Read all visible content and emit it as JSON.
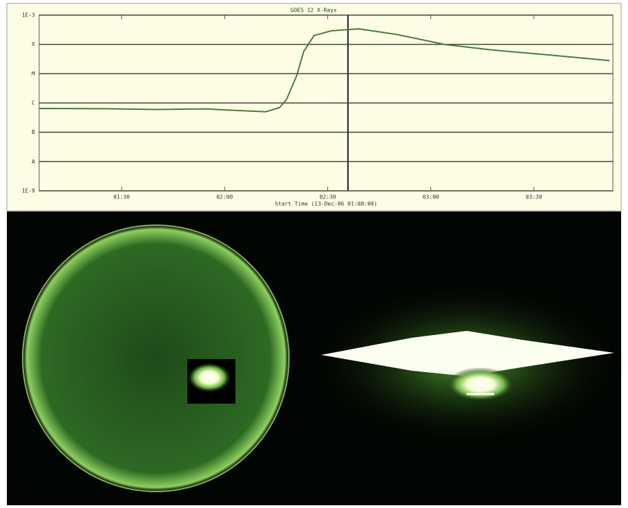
{
  "chart_data": {
    "type": "line",
    "title": "GOES 12 X-Rays",
    "xlabel": "Start Time (13-Dec-06 01:08:00)",
    "log_scale": true,
    "grid": true,
    "x": [
      "01:06",
      "01:24",
      "01:40",
      "01:55",
      "02:00",
      "02:12",
      "02:16",
      "02:18",
      "02:21",
      "02:23",
      "02:26",
      "02:31",
      "02:39",
      "02:50",
      "03:04",
      "03:18",
      "03:34",
      "03:52"
    ],
    "series": [
      {
        "color": "#4a7a3a",
        "values": [
          6.5e-07,
          6.4e-07,
          6e-07,
          6.3e-07,
          5.8e-07,
          5e-07,
          7e-07,
          1.3e-06,
          8.7e-06,
          5.7e-05,
          0.0002,
          0.00029,
          0.00034,
          0.00022,
          0.0001,
          6.4e-05,
          4.4e-05,
          2.8e-05
        ]
      }
    ],
    "xlim": [
      "01:06",
      "03:53"
    ],
    "xticks": [
      "01:30",
      "02:00",
      "02:30",
      "03:00",
      "03:30"
    ],
    "ylim": [
      1e-09,
      0.001
    ],
    "yticks": [
      {
        "value": 0.001,
        "label": "1E-3"
      },
      {
        "value": 0.0001,
        "label": "X"
      },
      {
        "value": 1e-05,
        "label": "M"
      },
      {
        "value": 1e-06,
        "label": "C"
      },
      {
        "value": 1e-07,
        "label": "B"
      },
      {
        "value": 1e-08,
        "label": "A"
      },
      {
        "value": 1e-09,
        "label": "1E-9"
      }
    ]
  }
}
